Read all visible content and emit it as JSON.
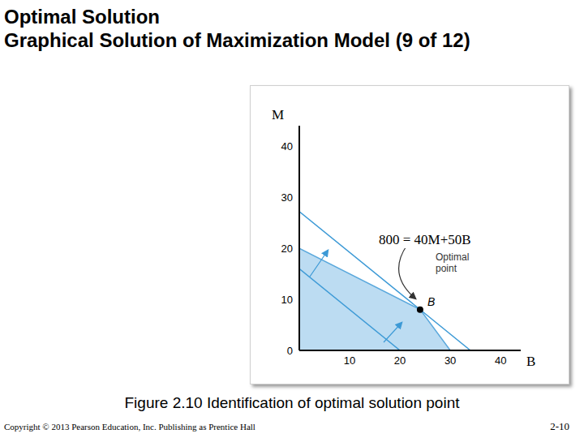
{
  "title": "Optimal Solution",
  "subtitle": "Graphical Solution of Maximization Model (9 of 12)",
  "caption": "Figure 2.10 Identification of optimal solution point",
  "copyright": "Copyright © 2013 Pearson Education, Inc. Publishing as Prentice Hall",
  "page": "2-10",
  "chart_data": {
    "type": "line",
    "x_label": "B",
    "y_label": "M",
    "xlim": [
      0,
      44
    ],
    "ylim": [
      0,
      44
    ],
    "xticks": [
      10,
      20,
      30,
      40
    ],
    "yticks": [
      0,
      10,
      20,
      30,
      40
    ],
    "grid": false,
    "series": [
      {
        "type": "area",
        "color": "#bcdcf2",
        "x": [
          0,
          24,
          30
        ],
        "values": [
          20,
          8,
          0
        ]
      },
      {
        "type": "line",
        "color": "#3d9ad6",
        "x": [
          0,
          20
        ],
        "values": [
          16,
          0
        ]
      },
      {
        "type": "line",
        "color": "#3d9ad6",
        "x": [
          0,
          34
        ],
        "values": [
          27.2,
          0
        ]
      },
      {
        "type": "scatter",
        "color": "#000000",
        "marker": "circle",
        "x": [
          24
        ],
        "values": [
          8
        ]
      }
    ],
    "annotations": [
      "800 = 40M+50B",
      "Optimal point",
      "B"
    ]
  }
}
